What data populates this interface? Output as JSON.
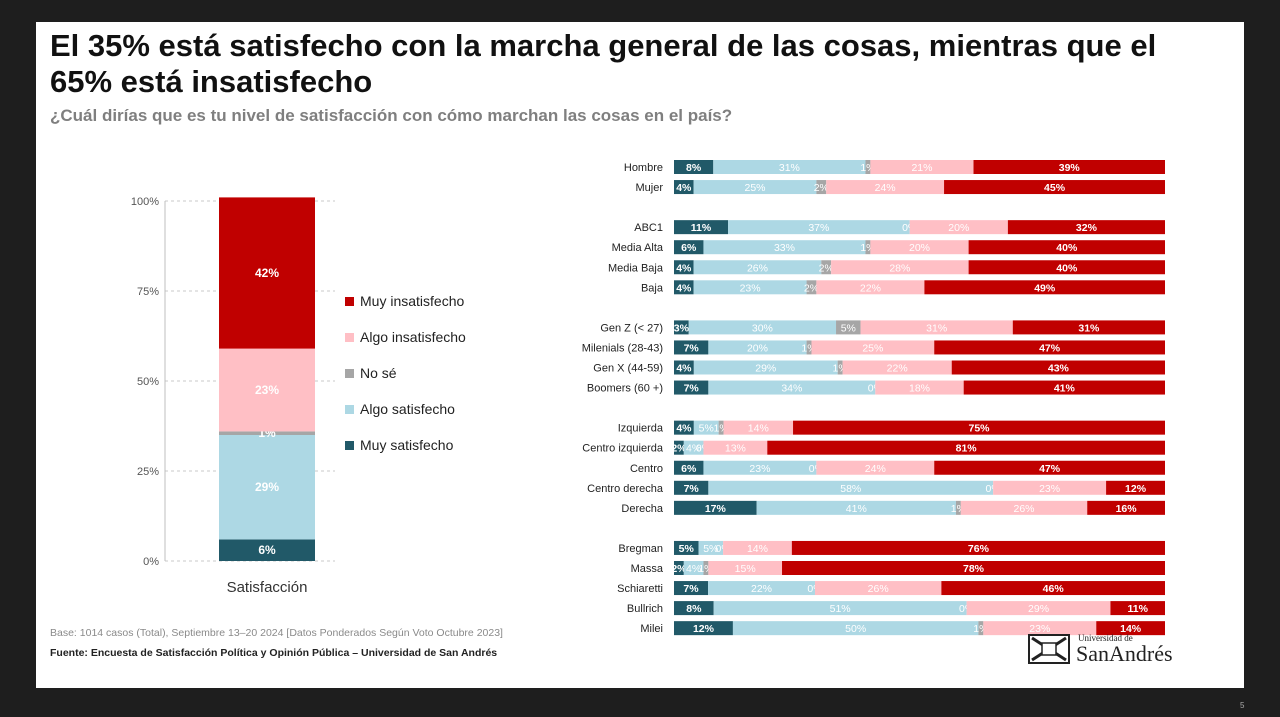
{
  "title": "El 35% está satisfecho con la marcha general de las cosas, mientras que el 65% está insatisfecho",
  "subtitle": "¿Cuál dirías que es tu nivel de satisfacción con cómo marchan las cosas en el país?",
  "colors": {
    "muy_insatisfecho": "#c00000",
    "algo_insatisfecho": "#ffbfc5",
    "no_se": "#a6a6a6",
    "algo_satisfecho": "#add8e4",
    "muy_satisfecho": "#215968"
  },
  "legend": [
    {
      "key": "muy_insatisfecho",
      "label": "Muy insatisfecho"
    },
    {
      "key": "algo_insatisfecho",
      "label": "Algo insatisfecho"
    },
    {
      "key": "no_se",
      "label": "No sé"
    },
    {
      "key": "algo_satisfecho",
      "label": "Algo satisfecho"
    },
    {
      "key": "muy_satisfecho",
      "label": "Muy satisfecho"
    }
  ],
  "footer": {
    "base": "Base: 1014 casos (Total), Septiembre 13–20 2024 [Datos Ponderados Según Voto Octubre 2023]",
    "source": "Fuente: Encuesta de Satisfacción Política y Opinión Pública – Universidad de San Andrés"
  },
  "logo": {
    "line1": "Universidad de",
    "line2": "SanAndrés"
  },
  "page_number": "5",
  "chart_data": [
    {
      "type": "bar",
      "stacked": true,
      "categories": [
        "Satisfacción"
      ],
      "ylim": [
        0,
        100
      ],
      "yticks": [
        "0%",
        "25%",
        "50%",
        "75%",
        "100%"
      ],
      "grid": true,
      "legend_position": "right",
      "series": [
        {
          "name": "Muy satisfecho",
          "key": "muy_satisfecho",
          "values": [
            6
          ]
        },
        {
          "name": "Algo satisfecho",
          "key": "algo_satisfecho",
          "values": [
            29
          ]
        },
        {
          "name": "No sé",
          "key": "no_se",
          "values": [
            1
          ]
        },
        {
          "name": "Algo insatisfecho",
          "key": "algo_insatisfecho",
          "values": [
            23
          ]
        },
        {
          "name": "Muy insatisfecho",
          "key": "muy_insatisfecho",
          "values": [
            42
          ]
        }
      ]
    },
    {
      "type": "bar",
      "orientation": "horizontal",
      "stacked": true,
      "series_order": [
        "muy_satisfecho",
        "algo_satisfecho",
        "no_se",
        "algo_insatisfecho",
        "muy_insatisfecho"
      ],
      "groups": [
        [
          {
            "label": "Hombre",
            "values": [
              8,
              31,
              1,
              21,
              39
            ]
          },
          {
            "label": "Mujer",
            "values": [
              4,
              25,
              2,
              24,
              45
            ]
          }
        ],
        [
          {
            "label": "ABC1",
            "values": [
              11,
              37,
              0,
              20,
              32
            ]
          },
          {
            "label": "Media Alta",
            "values": [
              6,
              33,
              1,
              20,
              40
            ]
          },
          {
            "label": "Media Baja",
            "values": [
              4,
              26,
              2,
              28,
              40
            ]
          },
          {
            "label": "Baja",
            "values": [
              4,
              23,
              2,
              22,
              49
            ]
          }
        ],
        [
          {
            "label": "Gen Z (< 27)",
            "values": [
              3,
              30,
              5,
              31,
              31
            ]
          },
          {
            "label": "Milenials (28-43)",
            "values": [
              7,
              20,
              1,
              25,
              47
            ]
          },
          {
            "label": "Gen X (44-59)",
            "values": [
              4,
              29,
              1,
              22,
              43
            ]
          },
          {
            "label": "Boomers (60 +)",
            "values": [
              7,
              34,
              0,
              18,
              41
            ]
          }
        ],
        [
          {
            "label": "Izquierda",
            "values": [
              4,
              5,
              1,
              14,
              75
            ]
          },
          {
            "label": "Centro izquierda",
            "values": [
              2,
              4,
              0,
              13,
              81
            ]
          },
          {
            "label": "Centro",
            "values": [
              6,
              23,
              0,
              24,
              47
            ]
          },
          {
            "label": "Centro derecha",
            "values": [
              7,
              58,
              0,
              23,
              12
            ]
          },
          {
            "label": "Derecha",
            "values": [
              17,
              41,
              1,
              26,
              16
            ]
          }
        ],
        [
          {
            "label": "Bregman",
            "values": [
              5,
              5,
              0,
              14,
              76
            ]
          },
          {
            "label": "Massa",
            "values": [
              2,
              4,
              1,
              15,
              78
            ]
          },
          {
            "label": "Schiaretti",
            "values": [
              7,
              22,
              0,
              26,
              46
            ]
          },
          {
            "label": "Bullrich",
            "values": [
              8,
              51,
              0,
              29,
              11
            ]
          },
          {
            "label": "Milei",
            "values": [
              12,
              50,
              1,
              23,
              14
            ]
          }
        ]
      ]
    }
  ]
}
